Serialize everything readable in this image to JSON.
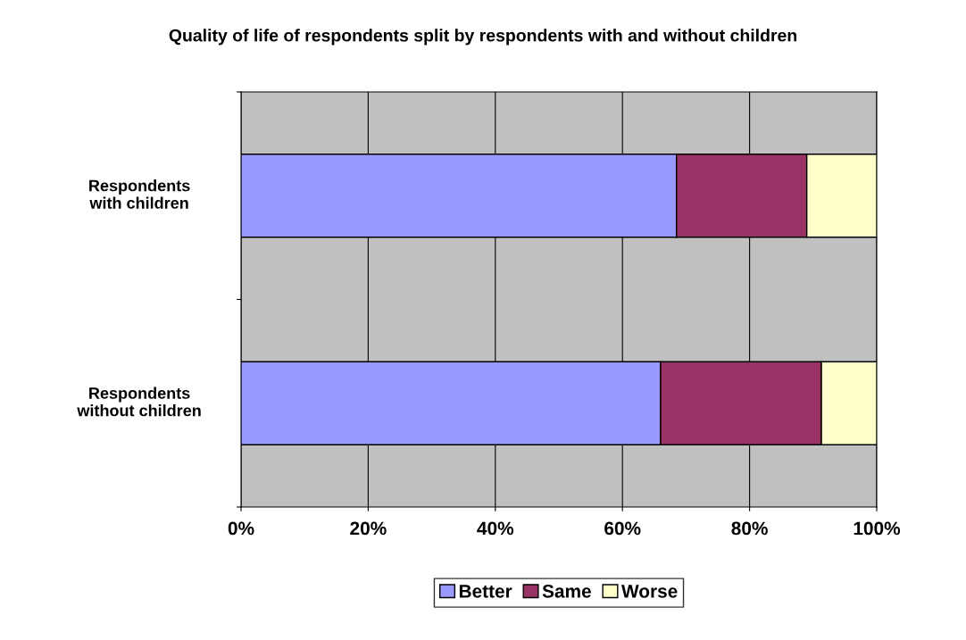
{
  "chart_data": {
    "type": "bar",
    "orientation": "horizontal",
    "stacked": true,
    "title": "Quality of life of respondents split by respondents with and without children",
    "categories": [
      "Respondents with children",
      "Respondents without children"
    ],
    "series": [
      {
        "name": "Better",
        "color": "#9999ff",
        "values": [
          68.5,
          66.0
        ]
      },
      {
        "name": "Same",
        "color": "#993366",
        "values": [
          20.5,
          25.3
        ]
      },
      {
        "name": "Worse",
        "color": "#ffffcc",
        "values": [
          11.0,
          8.7
        ]
      }
    ],
    "xlim": [
      0,
      100
    ],
    "xticks": [
      {
        "value": 0,
        "label": "0%"
      },
      {
        "value": 20,
        "label": "20%"
      },
      {
        "value": 40,
        "label": "40%"
      },
      {
        "value": 60,
        "label": "60%"
      },
      {
        "value": 80,
        "label": "80%"
      },
      {
        "value": 100,
        "label": "100%"
      }
    ],
    "grid": "x",
    "legend": "bottom"
  }
}
